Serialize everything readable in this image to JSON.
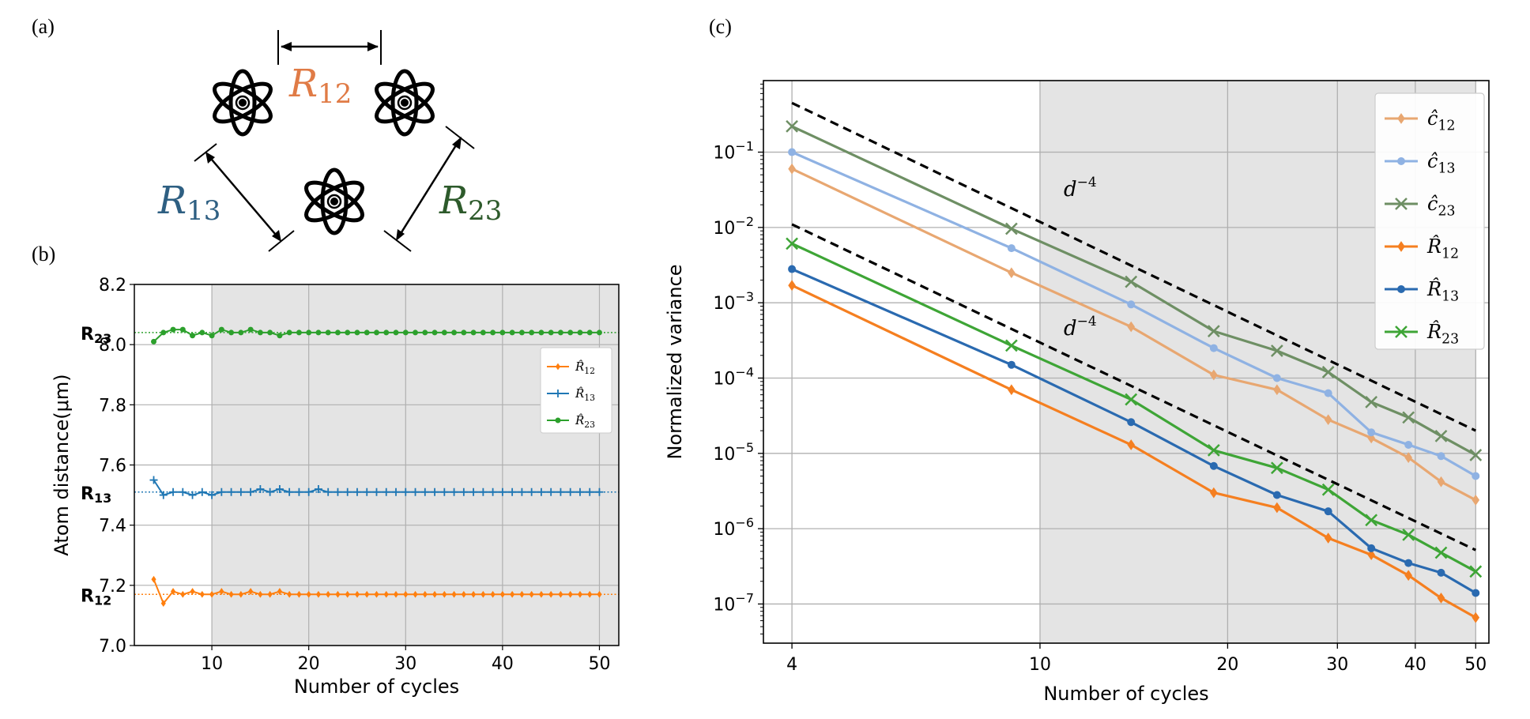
{
  "panels": {
    "a": "(a)",
    "b": "(b)",
    "c": "(c)"
  },
  "diagram": {
    "labels": [
      {
        "base": "R",
        "sub": "12",
        "color": "#e07b46"
      },
      {
        "base": "R",
        "sub": "13",
        "color": "#2e5f82"
      },
      {
        "base": "R",
        "sub": "23",
        "color": "#2d5a2b"
      }
    ]
  },
  "chart_data": [
    {
      "type": "line",
      "panel": "(b)",
      "xlabel": "Number of cycles",
      "ylabel": "Atom distance(μm)",
      "xlim": [
        2,
        52
      ],
      "ylim": [
        7.0,
        8.2
      ],
      "xticks": [
        10,
        20,
        30,
        40,
        50
      ],
      "yticks": [
        7.0,
        7.2,
        7.4,
        7.6,
        7.8,
        8.0,
        8.2
      ],
      "yticklabels": [
        "7.0",
        "7.2",
        "7.4",
        "7.6",
        "7.8",
        "8.0",
        "8.2"
      ],
      "shaded_from": 10,
      "reference_lines": [
        {
          "name": "R₁₃",
          "value": 7.51,
          "color": "#1f77b4"
        },
        {
          "name": "R₁₂",
          "value": 7.17,
          "color": "#ff7f0e"
        },
        {
          "name": "R₂₃",
          "value": 8.04,
          "color": "#2ca02c"
        }
      ],
      "x": [
        4,
        5,
        6,
        7,
        8,
        9,
        10,
        11,
        12,
        13,
        14,
        15,
        16,
        17,
        18,
        19,
        20,
        21,
        22,
        23,
        24,
        25,
        26,
        27,
        28,
        29,
        30,
        31,
        32,
        33,
        34,
        35,
        36,
        37,
        38,
        39,
        40,
        41,
        42,
        43,
        44,
        45,
        46,
        47,
        48,
        49,
        50
      ],
      "series": [
        {
          "name": "R̂₁₂",
          "color": "#ff7f0e",
          "marker": "diamond",
          "values": [
            7.22,
            7.14,
            7.18,
            7.17,
            7.18,
            7.17,
            7.17,
            7.18,
            7.17,
            7.17,
            7.18,
            7.17,
            7.17,
            7.18,
            7.17,
            7.17,
            7.17,
            7.17,
            7.17,
            7.17,
            7.17,
            7.17,
            7.17,
            7.17,
            7.17,
            7.17,
            7.17,
            7.17,
            7.17,
            7.17,
            7.17,
            7.17,
            7.17,
            7.17,
            7.17,
            7.17,
            7.17,
            7.17,
            7.17,
            7.17,
            7.17,
            7.17,
            7.17,
            7.17,
            7.17,
            7.17,
            7.17
          ]
        },
        {
          "name": "R̂₁₃",
          "color": "#1f77b4",
          "marker": "plus",
          "values": [
            7.55,
            7.5,
            7.51,
            7.51,
            7.5,
            7.51,
            7.5,
            7.51,
            7.51,
            7.51,
            7.51,
            7.52,
            7.51,
            7.52,
            7.51,
            7.51,
            7.51,
            7.52,
            7.51,
            7.51,
            7.51,
            7.51,
            7.51,
            7.51,
            7.51,
            7.51,
            7.51,
            7.51,
            7.51,
            7.51,
            7.51,
            7.51,
            7.51,
            7.51,
            7.51,
            7.51,
            7.51,
            7.51,
            7.51,
            7.51,
            7.51,
            7.51,
            7.51,
            7.51,
            7.51,
            7.51,
            7.51
          ]
        },
        {
          "name": "R̂₂₃",
          "color": "#2ca02c",
          "marker": "dot",
          "values": [
            8.01,
            8.04,
            8.05,
            8.05,
            8.03,
            8.04,
            8.03,
            8.05,
            8.04,
            8.04,
            8.05,
            8.04,
            8.04,
            8.03,
            8.04,
            8.04,
            8.04,
            8.04,
            8.04,
            8.04,
            8.04,
            8.04,
            8.04,
            8.04,
            8.04,
            8.04,
            8.04,
            8.04,
            8.04,
            8.04,
            8.04,
            8.04,
            8.04,
            8.04,
            8.04,
            8.04,
            8.04,
            8.04,
            8.04,
            8.04,
            8.04,
            8.04,
            8.04,
            8.04,
            8.04,
            8.04,
            8.04
          ]
        }
      ],
      "legend": "right-middle"
    },
    {
      "type": "line",
      "panel": "(c)",
      "scale": "log-log",
      "xlabel": "Number of cycles",
      "ylabel": "Normalized variance",
      "xlim": [
        3.6,
        52.5
      ],
      "ylim_log10": [
        -7.52,
        -0.05
      ],
      "xticks": [
        4,
        10,
        20,
        30,
        40,
        50
      ],
      "yticks_exp": [
        -1,
        -2,
        -3,
        -4,
        -5,
        -6,
        -7
      ],
      "ytick_base": "10",
      "shaded_from": 10,
      "shaded_to": 50,
      "x": [
        4,
        9,
        14,
        19,
        24,
        29,
        34,
        39,
        44,
        50
      ],
      "series": [
        {
          "name": "ĉ₁₂",
          "color": "#e8a771",
          "marker": "diamond",
          "values": [
            0.06,
            0.0025,
            0.00048,
            0.00011,
            7e-05,
            2.8e-05,
            1.6e-05,
            8.8e-06,
            4.2e-06,
            2.4e-06
          ]
        },
        {
          "name": "ĉ₁₃",
          "color": "#8fb2e3",
          "marker": "circle",
          "values": [
            0.1,
            0.0053,
            0.00095,
            0.00025,
            0.0001,
            6.3e-05,
            1.9e-05,
            1.3e-05,
            9.2e-06,
            5e-06
          ]
        },
        {
          "name": "ĉ₂₃",
          "color": "#6e8f64",
          "marker": "x",
          "values": [
            0.22,
            0.0096,
            0.0019,
            0.00042,
            0.00023,
            0.00012,
            4.8e-05,
            3e-05,
            1.7e-05,
            9.5e-06
          ]
        },
        {
          "name": "R̂₁₂",
          "color": "#f57f20",
          "marker": "diamond",
          "values": [
            0.0017,
            7e-05,
            1.3e-05,
            3e-06,
            1.9e-06,
            7.5e-07,
            4.5e-07,
            2.4e-07,
            1.2e-07,
            6.6e-08
          ]
        },
        {
          "name": "R̂₁₃",
          "color": "#2a6ab0",
          "marker": "circle",
          "values": [
            0.0028,
            0.00015,
            2.6e-05,
            6.8e-06,
            2.8e-06,
            1.7e-06,
            5.5e-07,
            3.5e-07,
            2.6e-07,
            1.4e-07
          ]
        },
        {
          "name": "R̂₂₃",
          "color": "#3ea536",
          "marker": "x",
          "values": [
            0.0061,
            0.00027,
            5.2e-05,
            1.1e-05,
            6.4e-06,
            3.3e-06,
            1.3e-06,
            8.3e-07,
            4.8e-07,
            2.7e-07
          ]
        }
      ],
      "reference_lines": [
        {
          "label": "d",
          "sup": "−4",
          "x": [
            4,
            50
          ],
          "y": [
            0.45,
            2e-05
          ]
        },
        {
          "label": "d",
          "sup": "−4",
          "x": [
            4,
            50
          ],
          "y": [
            0.011,
            5.2e-07
          ]
        }
      ],
      "legend": "top-right"
    }
  ]
}
